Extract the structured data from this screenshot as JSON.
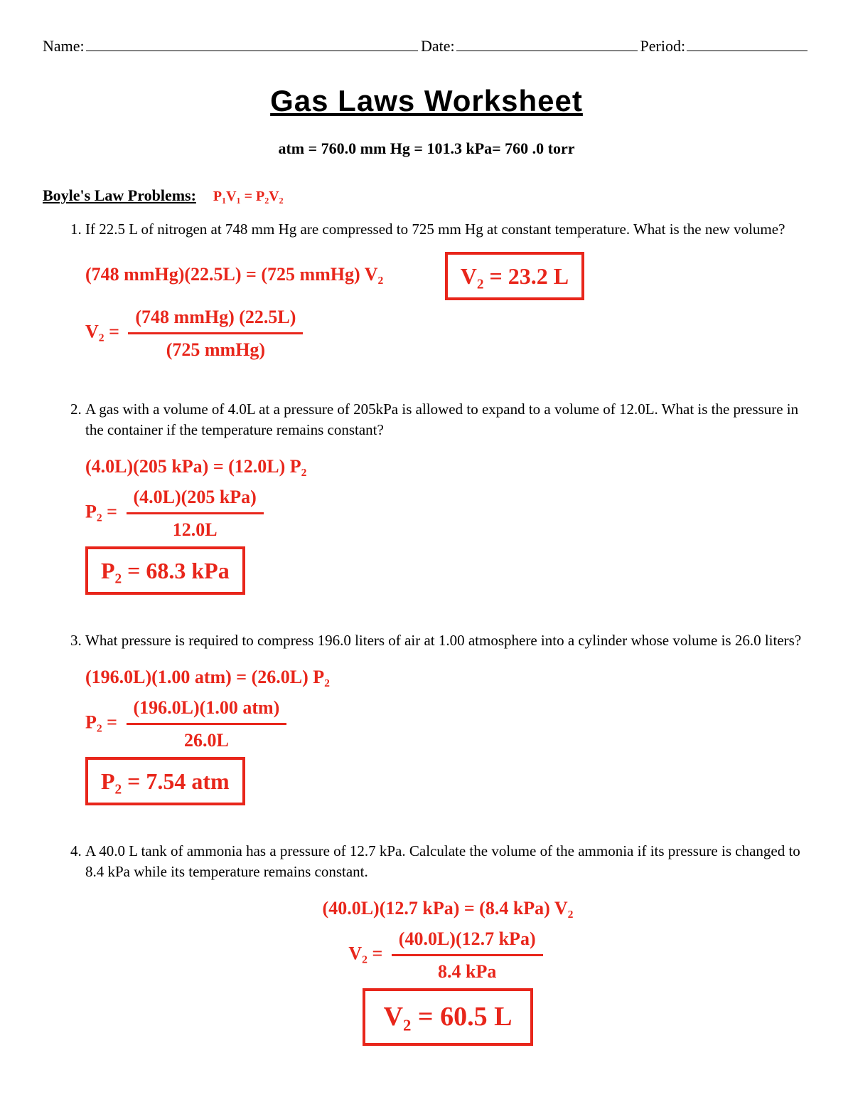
{
  "colors": {
    "text": "#000000",
    "handwriting": "#e8261b",
    "background": "#ffffff"
  },
  "typography": {
    "body_font": "Times New Roman",
    "body_size_pt": 16,
    "title_font": "Impact",
    "title_size_pt": 32,
    "hand_font": "Comic Sans MS",
    "hand_size_pt": 20
  },
  "header": {
    "name_label": "Name:",
    "date_label": "Date:",
    "period_label": "Period:"
  },
  "title": "Gas Laws Worksheet",
  "conversion_formula": "atm  =  760.0 mm Hg  = 101.3 kPa= 760 .0 torr",
  "section_heading": "Boyle's Law Problems:",
  "boyle_formula_handwritten": "P₁V₁ = P₂V₂",
  "problems": [
    {
      "number": 1,
      "text": "If 22.5 L of nitrogen at 748 mm Hg are compressed to 725 mm Hg at constant temperature. What is the new volume?",
      "work": {
        "eq": "(748 mmHg)(22.5L) = (725 mmHg) V₂",
        "frac_lhs": "V₂ =",
        "frac_num": "(748 mmHg) (22.5L)",
        "frac_den": "(725 mmHg)",
        "answer": "V₂ = 23.2 L"
      }
    },
    {
      "number": 2,
      "text": "A gas with a volume of 4.0L at a pressure of 205kPa is allowed to expand to a volume of 12.0L. What is the pressure in the container if the temperature remains constant?",
      "work": {
        "eq": "(4.0L)(205 kPa) = (12.0L) P₂",
        "frac_lhs": "P₂ =",
        "frac_num": "(4.0L)(205 kPa)",
        "frac_den": "12.0L",
        "answer": "P₂ = 68.3 kPa"
      }
    },
    {
      "number": 3,
      "text": "What pressure is required to compress 196.0 liters of air at 1.00 atmosphere into a cylinder whose volume is 26.0 liters?",
      "work": {
        "eq": "(196.0L)(1.00 atm) = (26.0L) P₂",
        "frac_lhs": "P₂ =",
        "frac_num": "(196.0L)(1.00 atm)",
        "frac_den": "26.0L",
        "answer": "P₂ = 7.54 atm"
      }
    },
    {
      "number": 4,
      "text": "A 40.0 L tank of ammonia has a pressure of 12.7 kPa. Calculate the volume of the ammonia if its pressure is changed to 8.4 kPa while its temperature remains constant.",
      "work": {
        "eq": "(40.0L)(12.7 kPa) = (8.4 kPa) V₂",
        "frac_lhs": "V₂ =",
        "frac_num": "(40.0L)(12.7 kPa)",
        "frac_den": "8.4 kPa",
        "answer": "V₂ = 60.5 L"
      }
    }
  ]
}
